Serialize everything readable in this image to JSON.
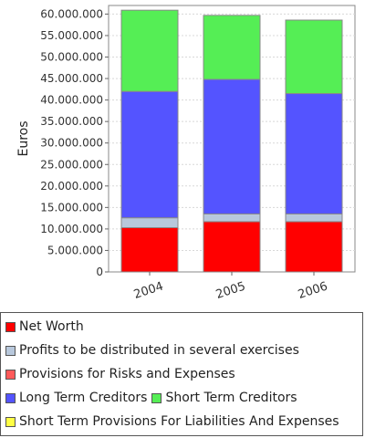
{
  "chart_data": {
    "type": "bar",
    "stacked": true,
    "categories": [
      "2004",
      "2005",
      "2006"
    ],
    "ylabel": "Euros",
    "ylim": [
      0,
      62000000
    ],
    "yticks": [
      0,
      5000000,
      10000000,
      15000000,
      20000000,
      25000000,
      30000000,
      35000000,
      40000000,
      45000000,
      50000000,
      55000000,
      60000000
    ],
    "ytick_labels": [
      "0",
      "5.000.000",
      "10.000.000",
      "15.000.000",
      "20.000.000",
      "25.000.000",
      "30.000.000",
      "35.000.000",
      "40.000.000",
      "45.000.000",
      "50.000.000",
      "55.000.000",
      "60.000.000"
    ],
    "grid": "horizontal",
    "legend_position": "bottom",
    "series": [
      {
        "name": "Net Worth",
        "color": "#ff0000",
        "values": [
          10300000,
          11700000,
          11700000
        ]
      },
      {
        "name": "Profits to be distributed in several exercises",
        "color": "#b8c8dc",
        "values": [
          2300000,
          1800000,
          1800000
        ]
      },
      {
        "name": "Provisions for Risks and Expenses",
        "color": "#ff5a5a",
        "values": [
          0,
          0,
          0
        ]
      },
      {
        "name": "Long Term Creditors",
        "color": "#5454ff",
        "values": [
          29400000,
          31300000,
          28000000
        ]
      },
      {
        "name": "Short Term Creditors",
        "color": "#55ee55",
        "values": [
          18900000,
          14900000,
          17100000
        ]
      },
      {
        "name": "Short Term Provisions For Liabilities And Expenses",
        "color": "#ffff44",
        "values": [
          0,
          0,
          0
        ]
      }
    ]
  },
  "legend": {
    "rows": [
      [
        0
      ],
      [
        1
      ],
      [
        2
      ],
      [
        3,
        4
      ],
      [
        5
      ]
    ]
  }
}
